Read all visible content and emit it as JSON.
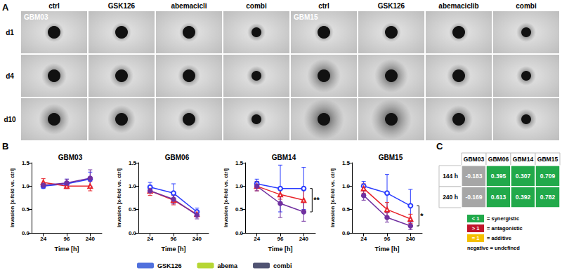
{
  "chart_data": [
    {
      "type": "image_grid",
      "panel": "A",
      "rows": [
        "d1",
        "d4",
        "d10"
      ],
      "groups": [
        {
          "name": "GBM03",
          "columns": [
            "ctrl",
            "GSK126",
            "abemacicli",
            "combi"
          ]
        },
        {
          "name": "GBM15",
          "columns": [
            "ctrl",
            "GSK126",
            "abemaciclib",
            "combi"
          ]
        }
      ]
    },
    {
      "type": "line",
      "panel": "B",
      "title": "GBM03",
      "x_label": "Time [h]",
      "y_label": "Invasion [x-fold vs. ctrl]",
      "categories": [
        "24",
        "96",
        "240"
      ],
      "ylim": [
        0,
        1.5
      ],
      "yticks": [
        {
          "value": 0,
          "label": "0.0"
        },
        {
          "value": 0.5,
          "label": "0.5"
        },
        {
          "value": 1,
          "label": "1.0"
        },
        {
          "value": 1.5,
          "label": "1.5"
        }
      ],
      "grid": false,
      "legend": "bottom",
      "series": [
        {
          "name": "GSK126",
          "color": "#2a3cff",
          "marker": "circle_open",
          "values": [
            1.0,
            1.05,
            1.15
          ],
          "errors": [
            0.05,
            0.1,
            0.15
          ]
        },
        {
          "name": "abema",
          "color": "#e8232a",
          "marker": "triangle_open",
          "values": [
            1.08,
            1.0,
            1.0
          ],
          "errors": [
            0.08,
            0.05,
            0.1
          ]
        },
        {
          "name": "combi",
          "color": "#7030a0",
          "marker": "circle",
          "values": [
            1.02,
            1.07,
            1.17
          ],
          "errors": [
            0.05,
            0.08,
            0.18
          ]
        }
      ]
    },
    {
      "type": "line",
      "title": "GBM06",
      "x_label": "Time [h]",
      "y_label": "Invasion [x-fold vs. ctrl]",
      "categories": [
        "24",
        "96",
        "240"
      ],
      "ylim": [
        0,
        1.5
      ],
      "yticks": [
        {
          "value": 0,
          "label": "0.0"
        },
        {
          "value": 0.5,
          "label": "0.5"
        },
        {
          "value": 1,
          "label": "1.0"
        },
        {
          "value": 1.5,
          "label": "1.5"
        }
      ],
      "grid": false,
      "series": [
        {
          "name": "GSK126",
          "color": "#2a3cff",
          "marker": "circle_open",
          "values": [
            0.98,
            0.85,
            0.45
          ],
          "errors": [
            0.1,
            0.2,
            0.08
          ]
        },
        {
          "name": "abema",
          "color": "#e8232a",
          "marker": "triangle_open",
          "values": [
            0.9,
            0.7,
            0.4
          ],
          "errors": [
            0.1,
            0.1,
            0.05
          ]
        },
        {
          "name": "combi",
          "color": "#7030a0",
          "marker": "circle",
          "values": [
            0.9,
            0.72,
            0.38
          ],
          "errors": [
            0.05,
            0.1,
            0.08
          ]
        }
      ]
    },
    {
      "type": "line",
      "title": "GBM14",
      "x_label": "Time [h]",
      "y_label": "Invasion [x-fold vs. ctrl]",
      "categories": [
        "24",
        "96",
        "240"
      ],
      "ylim": [
        0,
        1.5
      ],
      "yticks": [
        {
          "value": 0,
          "label": "0.0"
        },
        {
          "value": 0.5,
          "label": "0.5"
        },
        {
          "value": 1,
          "label": "1.0"
        },
        {
          "value": 1.5,
          "label": "1.5"
        }
      ],
      "grid": false,
      "annotations": [
        {
          "text": "**",
          "x": "240",
          "from": 0.95,
          "to": 0.45
        }
      ],
      "series": [
        {
          "name": "GSK126",
          "color": "#2a3cff",
          "marker": "circle_open",
          "values": [
            1.05,
            0.95,
            0.95
          ],
          "errors": [
            0.1,
            0.5,
            0.45
          ]
        },
        {
          "name": "abema",
          "color": "#e8232a",
          "marker": "triangle_open",
          "values": [
            1.0,
            0.82,
            0.7
          ],
          "errors": [
            0.1,
            0.1,
            0.25
          ]
        },
        {
          "name": "combi",
          "color": "#7030a0",
          "marker": "circle",
          "values": [
            1.0,
            0.63,
            0.45
          ],
          "errors": [
            0.1,
            0.3,
            0.2
          ]
        }
      ]
    },
    {
      "type": "line",
      "title": "GBM15",
      "x_label": "Time [h]",
      "y_label": "Invasion [x-fold vs. ctrl]",
      "categories": [
        "24",
        "96",
        "240"
      ],
      "ylim": [
        0,
        1.5
      ],
      "yticks": [
        {
          "value": 0,
          "label": "0.0"
        },
        {
          "value": 0.5,
          "label": "0.5"
        },
        {
          "value": 1,
          "label": "1.0"
        },
        {
          "value": 1.5,
          "label": "1.5"
        }
      ],
      "grid": false,
      "annotations": [
        {
          "text": "*",
          "x": "240",
          "from": 0.58,
          "to": 0.15
        }
      ],
      "series": [
        {
          "name": "GSK126",
          "color": "#2a3cff",
          "marker": "circle_open",
          "values": [
            1.0,
            0.85,
            0.58
          ],
          "errors": [
            0.1,
            0.4,
            0.35
          ]
        },
        {
          "name": "abema",
          "color": "#e8232a",
          "marker": "triangle_open",
          "values": [
            0.95,
            0.5,
            0.3
          ],
          "errors": [
            0.1,
            0.15,
            0.1
          ]
        },
        {
          "name": "combi",
          "color": "#7030a0",
          "marker": "circle",
          "values": [
            0.8,
            0.33,
            0.15
          ],
          "errors": [
            0.1,
            0.1,
            0.08
          ]
        }
      ]
    },
    {
      "type": "table",
      "panel": "C",
      "columns": [
        "GBM03",
        "GBM06",
        "GBM14",
        "GBM15"
      ],
      "rows": [
        "144 h",
        "240 h"
      ],
      "cells": [
        [
          -0.183,
          0.395,
          0.307,
          0.709
        ],
        [
          -0.169,
          0.613,
          0.392,
          0.782
        ]
      ],
      "colors": [
        [
          "#a6a6a6",
          "#21a94a",
          "#21a94a",
          "#21a94a"
        ],
        [
          "#a6a6a6",
          "#21a94a",
          "#21a94a",
          "#21a94a"
        ]
      ],
      "key": [
        {
          "label": "< 1",
          "text": "= synergistic",
          "color": "#21a94a"
        },
        {
          "label": "> 1",
          "text": "= antagonistic",
          "color": "#c0142b"
        },
        {
          "label": "= 1",
          "text": "= additive",
          "color": "#f5c000"
        },
        {
          "text": "negative = undefined"
        }
      ]
    }
  ]
}
